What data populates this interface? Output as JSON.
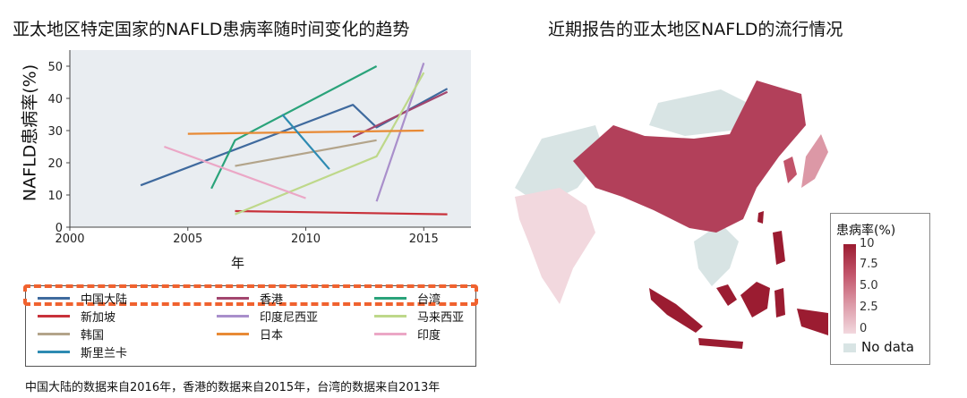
{
  "left_title": "亚太地区特定国家的NAFLD患病率随时间变化的趋势",
  "right_title": "近期报告的亚太地区NAFLD的流行情况",
  "footnote": "中国大陆的数据来自2016年，香港的数据来自2015年，台湾的数据来自2013年",
  "colors": {
    "highlight": "#f0622f",
    "plot_bg": "#e9edf1",
    "map_high": "#9b1c31",
    "map_nodata": "#d8e4e4"
  },
  "chart_data": {
    "type": "line",
    "title": "亚太地区特定国家的NAFLD患病率随时间变化的趋势",
    "xlabel": "年",
    "ylabel": "NAFLD患病率(%)",
    "xlim": [
      2000,
      2017
    ],
    "ylim": [
      0,
      55
    ],
    "xticks": [
      2000,
      2005,
      2010,
      2015
    ],
    "yticks": [
      0,
      10,
      20,
      30,
      40,
      50
    ],
    "grid": false,
    "legend_position": "bottom",
    "series": [
      {
        "name": "中国大陆",
        "color": "#3f6a9e",
        "points": [
          [
            2003,
            13
          ],
          [
            2012,
            38
          ],
          [
            2013,
            31
          ],
          [
            2016,
            43
          ]
        ]
      },
      {
        "name": "香港",
        "color": "#a2466e",
        "points": [
          [
            2012,
            28
          ],
          [
            2016,
            42
          ]
        ]
      },
      {
        "name": "台湾",
        "color": "#2aa37a",
        "points": [
          [
            2006,
            12
          ],
          [
            2007,
            27
          ],
          [
            2013,
            50
          ]
        ]
      },
      {
        "name": "新加坡",
        "color": "#c8313a",
        "points": [
          [
            2007,
            5
          ],
          [
            2016,
            4
          ]
        ]
      },
      {
        "name": "印度尼西亚",
        "color": "#a98fcb",
        "points": [
          [
            2013,
            8
          ],
          [
            2015,
            51
          ]
        ]
      },
      {
        "name": "马来西亚",
        "color": "#bed88a",
        "points": [
          [
            2007,
            4
          ],
          [
            2013,
            22
          ],
          [
            2015,
            48
          ]
        ]
      },
      {
        "name": "韩国",
        "color": "#b3a48a",
        "points": [
          [
            2007,
            19
          ],
          [
            2013,
            27
          ]
        ]
      },
      {
        "name": "日本",
        "color": "#e88a35",
        "points": [
          [
            2005,
            29
          ],
          [
            2015,
            30
          ]
        ]
      },
      {
        "name": "印度",
        "color": "#eba7c6",
        "points": [
          [
            2004,
            25
          ],
          [
            2010,
            9
          ]
        ]
      },
      {
        "name": "斯里兰卡",
        "color": "#2e8bb2",
        "points": [
          [
            2009,
            35
          ],
          [
            2011,
            18
          ]
        ]
      }
    ]
  },
  "map": {
    "legend_title": "患病率(%)",
    "ticks": [
      "10",
      "7.5",
      "5.0",
      "2.5",
      "0"
    ],
    "nodata_label": "No data"
  }
}
